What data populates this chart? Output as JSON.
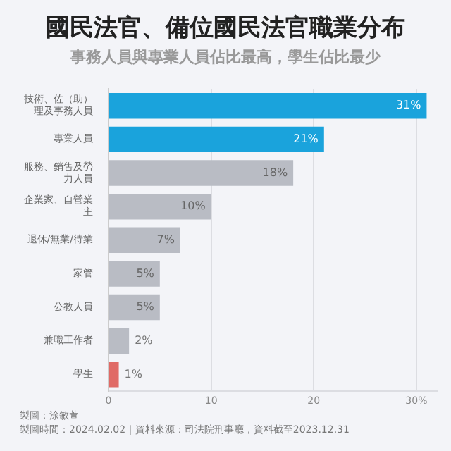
{
  "chart_data": {
    "type": "bar",
    "orientation": "horizontal",
    "title": "國民法官、備位國民法官職業分布",
    "subtitle": "事務人員與專業人員佔比最高，學生佔比最少",
    "categories": [
      "技術、佐（助）理及事務人員",
      "專業人員",
      "服務、銷售及勞力人員",
      "企業家、自營業主",
      "退休/無業/待業",
      "家管",
      "公教人員",
      "兼職工作者",
      "學生"
    ],
    "values": [
      31,
      21,
      18,
      10,
      7,
      5,
      5,
      2,
      1
    ],
    "colors": [
      "#1aa3dc",
      "#1aa3dc",
      "#b9bcc4",
      "#b9bcc4",
      "#b9bcc4",
      "#b9bcc4",
      "#b9bcc4",
      "#b9bcc4",
      "#e06a66"
    ],
    "value_labels": [
      "31%",
      "21%",
      "18%",
      "10%",
      "7%",
      "5%",
      "5%",
      "2%",
      "1%"
    ],
    "xlim": [
      0,
      32
    ],
    "xticks": [
      0,
      10,
      20,
      {
        "value": 30,
        "label": "30%"
      }
    ],
    "grid": "x",
    "legend": false,
    "annotations": [
      "製圖：涂敏萱",
      "製圖時間：2024.02.02 | 資料來源：司法院刑事廳，資料截至2023.12.31"
    ]
  }
}
